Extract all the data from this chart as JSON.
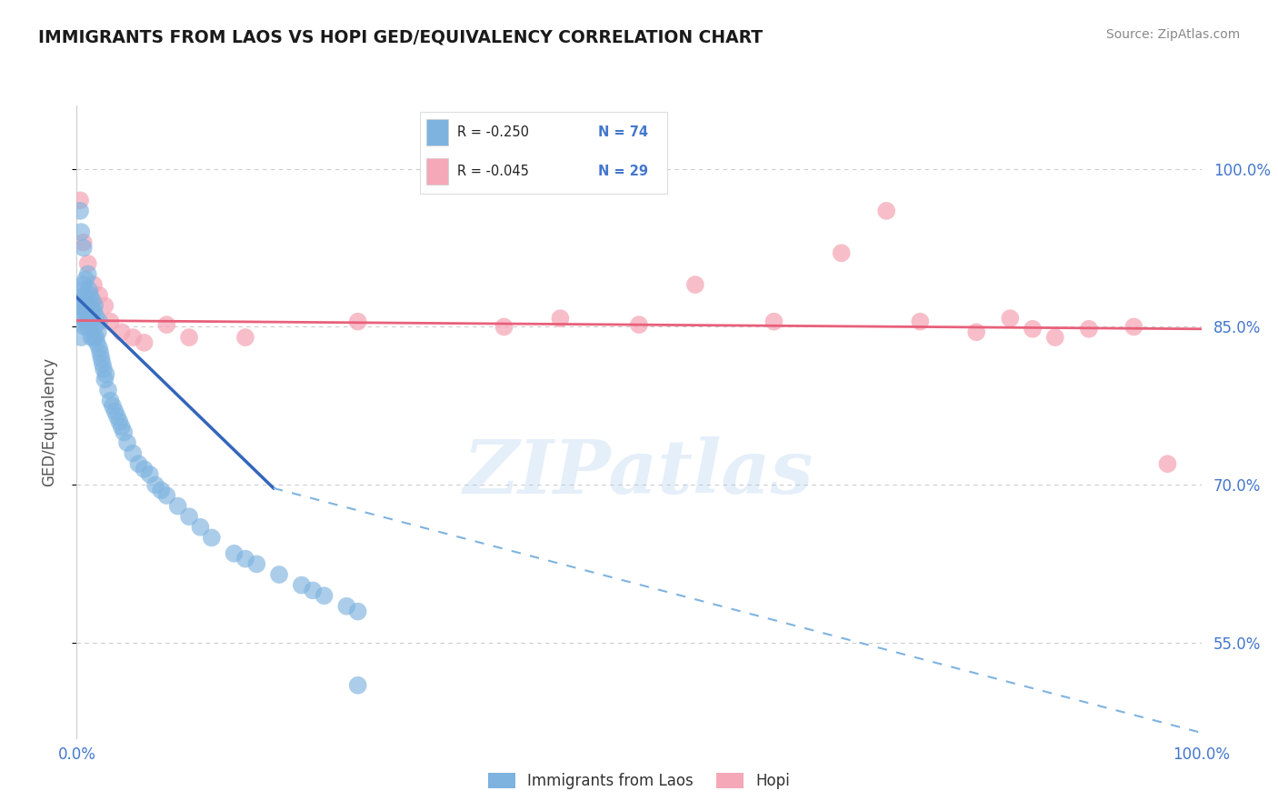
{
  "title": "IMMIGRANTS FROM LAOS VS HOPI GED/EQUIVALENCY CORRELATION CHART",
  "source_text": "Source: ZipAtlas.com",
  "ylabel": "GED/Equivalency",
  "watermark": "ZIPatlas",
  "xlim": [
    0.0,
    1.0
  ],
  "ylim": [
    0.46,
    1.06
  ],
  "yticks": [
    0.55,
    0.7,
    0.85,
    1.0
  ],
  "ytick_labels": [
    "55.0%",
    "70.0%",
    "85.0%",
    "100.0%"
  ],
  "color_blue": "#7EB3E0",
  "color_pink": "#F5A8B8",
  "color_blue_line": "#3366BB",
  "color_pink_line": "#E8607A",
  "color_axis_labels": "#4477CC",
  "background_color": "#FFFFFF",
  "grid_color": "#CCCCCC",
  "legend_R1": "-0.250",
  "legend_N1": "74",
  "legend_R2": "-0.045",
  "legend_N2": "29",
  "blue_line_x0": 0.0,
  "blue_line_y0": 0.878,
  "blue_line_x1_solid": 0.175,
  "blue_line_y1_solid": 0.697,
  "blue_line_x1_dash": 1.0,
  "blue_line_y1_dash": 0.465,
  "pink_line_x0": 0.0,
  "pink_line_y0": 0.856,
  "pink_line_x1": 1.0,
  "pink_line_y1": 0.848,
  "blue_x": [
    0.002,
    0.003,
    0.004,
    0.004,
    0.005,
    0.005,
    0.006,
    0.006,
    0.007,
    0.007,
    0.008,
    0.008,
    0.009,
    0.009,
    0.01,
    0.01,
    0.01,
    0.011,
    0.011,
    0.012,
    0.012,
    0.013,
    0.013,
    0.014,
    0.014,
    0.015,
    0.015,
    0.016,
    0.016,
    0.017,
    0.017,
    0.018,
    0.019,
    0.02,
    0.02,
    0.021,
    0.022,
    0.023,
    0.024,
    0.025,
    0.026,
    0.028,
    0.03,
    0.032,
    0.034,
    0.036,
    0.038,
    0.04,
    0.042,
    0.045,
    0.05,
    0.055,
    0.06,
    0.065,
    0.07,
    0.075,
    0.08,
    0.09,
    0.1,
    0.11,
    0.12,
    0.14,
    0.15,
    0.16,
    0.18,
    0.2,
    0.21,
    0.22,
    0.24,
    0.25,
    0.003,
    0.004,
    0.006,
    0.25
  ],
  "blue_y": [
    0.87,
    0.855,
    0.84,
    0.875,
    0.86,
    0.885,
    0.87,
    0.89,
    0.85,
    0.88,
    0.865,
    0.895,
    0.855,
    0.875,
    0.85,
    0.87,
    0.9,
    0.86,
    0.885,
    0.855,
    0.88,
    0.865,
    0.84,
    0.875,
    0.855,
    0.84,
    0.865,
    0.85,
    0.87,
    0.84,
    0.86,
    0.835,
    0.845,
    0.83,
    0.855,
    0.825,
    0.82,
    0.815,
    0.81,
    0.8,
    0.805,
    0.79,
    0.78,
    0.775,
    0.77,
    0.765,
    0.76,
    0.755,
    0.75,
    0.74,
    0.73,
    0.72,
    0.715,
    0.71,
    0.7,
    0.695,
    0.69,
    0.68,
    0.67,
    0.66,
    0.65,
    0.635,
    0.63,
    0.625,
    0.615,
    0.605,
    0.6,
    0.595,
    0.585,
    0.58,
    0.96,
    0.94,
    0.925,
    0.51
  ],
  "pink_x": [
    0.003,
    0.006,
    0.01,
    0.015,
    0.02,
    0.025,
    0.03,
    0.04,
    0.05,
    0.06,
    0.08,
    0.1,
    0.15,
    0.25,
    0.38,
    0.43,
    0.5,
    0.55,
    0.62,
    0.68,
    0.72,
    0.75,
    0.8,
    0.83,
    0.85,
    0.87,
    0.9,
    0.94,
    0.97
  ],
  "pink_y": [
    0.97,
    0.93,
    0.91,
    0.89,
    0.88,
    0.87,
    0.855,
    0.845,
    0.84,
    0.835,
    0.852,
    0.84,
    0.84,
    0.855,
    0.85,
    0.858,
    0.852,
    0.89,
    0.855,
    0.92,
    0.96,
    0.855,
    0.845,
    0.858,
    0.848,
    0.84,
    0.848,
    0.85,
    0.72
  ]
}
